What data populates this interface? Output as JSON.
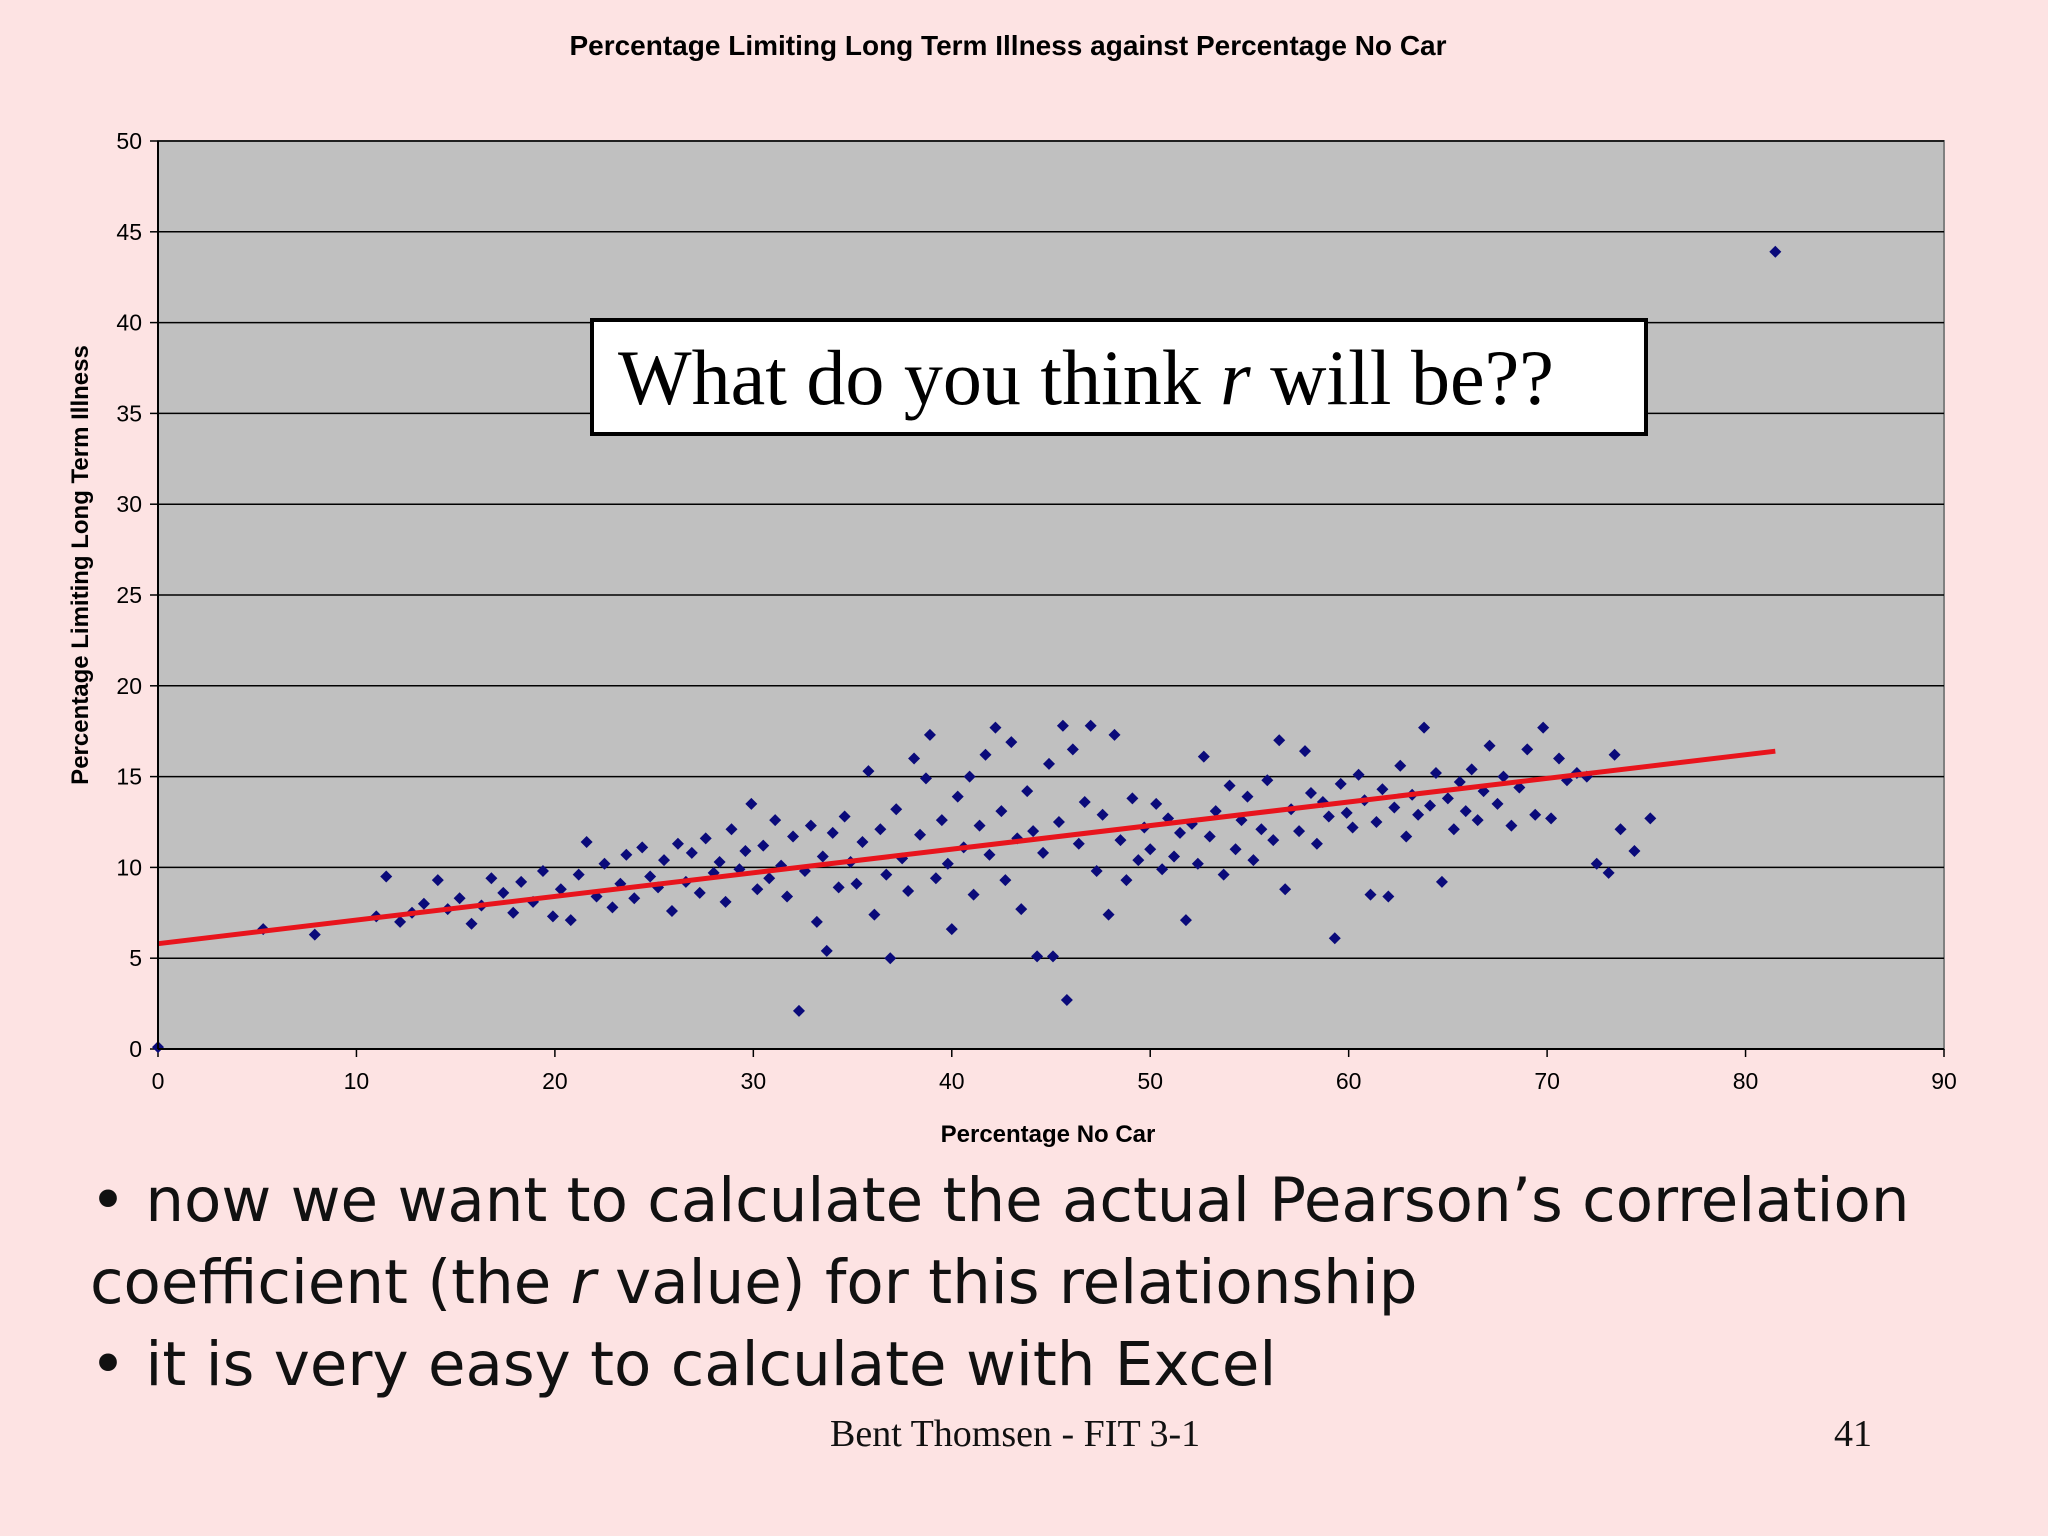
{
  "chart_data": {
    "type": "scatter",
    "title": "Percentage Limiting Long Term Illness against Percentage No Car",
    "xlabel": "Percentage No Car",
    "ylabel": "Percentage Limiting Long Term Illness",
    "xlim": [
      0,
      90
    ],
    "ylim": [
      0,
      50
    ],
    "xticks": [
      0,
      10,
      20,
      30,
      40,
      50,
      60,
      70,
      80,
      90
    ],
    "yticks": [
      0,
      5,
      10,
      15,
      20,
      25,
      30,
      35,
      40,
      45,
      50
    ],
    "grid": "horizontal",
    "legend": "none",
    "trendline": {
      "x": [
        0,
        81.5
      ],
      "y": [
        5.8,
        16.4
      ]
    },
    "colors": {
      "points": "#0a0a7a",
      "trendline": "#e8141c",
      "plot_bg": "#c0c0c0"
    },
    "points": [
      [
        0,
        0.1
      ],
      [
        5.3,
        6.6
      ],
      [
        7.9,
        6.3
      ],
      [
        11.0,
        7.3
      ],
      [
        11.5,
        9.5
      ],
      [
        12.2,
        7.0
      ],
      [
        12.8,
        7.5
      ],
      [
        13.4,
        8.0
      ],
      [
        14.1,
        9.3
      ],
      [
        14.6,
        7.7
      ],
      [
        15.2,
        8.3
      ],
      [
        15.8,
        6.9
      ],
      [
        16.3,
        7.9
      ],
      [
        16.8,
        9.4
      ],
      [
        17.4,
        8.6
      ],
      [
        17.9,
        7.5
      ],
      [
        18.3,
        9.2
      ],
      [
        18.9,
        8.1
      ],
      [
        19.4,
        9.8
      ],
      [
        19.9,
        7.3
      ],
      [
        20.3,
        8.8
      ],
      [
        20.8,
        7.1
      ],
      [
        21.2,
        9.6
      ],
      [
        21.6,
        11.4
      ],
      [
        22.1,
        8.4
      ],
      [
        22.5,
        10.2
      ],
      [
        22.9,
        7.8
      ],
      [
        23.3,
        9.1
      ],
      [
        23.6,
        10.7
      ],
      [
        24.0,
        8.3
      ],
      [
        24.4,
        11.1
      ],
      [
        24.8,
        9.5
      ],
      [
        25.2,
        8.9
      ],
      [
        25.5,
        10.4
      ],
      [
        25.9,
        7.6
      ],
      [
        26.2,
        11.3
      ],
      [
        26.6,
        9.2
      ],
      [
        26.9,
        10.8
      ],
      [
        27.3,
        8.6
      ],
      [
        27.6,
        11.6
      ],
      [
        28.0,
        9.7
      ],
      [
        28.3,
        10.3
      ],
      [
        28.6,
        8.1
      ],
      [
        28.9,
        12.1
      ],
      [
        29.3,
        9.9
      ],
      [
        29.6,
        10.9
      ],
      [
        29.9,
        13.5
      ],
      [
        30.2,
        8.8
      ],
      [
        30.5,
        11.2
      ],
      [
        30.8,
        9.4
      ],
      [
        31.1,
        12.6
      ],
      [
        31.4,
        10.1
      ],
      [
        31.7,
        8.4
      ],
      [
        32.0,
        11.7
      ],
      [
        32.3,
        2.1
      ],
      [
        32.6,
        9.8
      ],
      [
        32.9,
        12.3
      ],
      [
        33.2,
        7.0
      ],
      [
        33.5,
        10.6
      ],
      [
        33.7,
        5.4
      ],
      [
        34.0,
        11.9
      ],
      [
        34.3,
        8.9
      ],
      [
        34.6,
        12.8
      ],
      [
        34.9,
        10.3
      ],
      [
        35.2,
        9.1
      ],
      [
        35.5,
        11.4
      ],
      [
        35.8,
        15.3
      ],
      [
        36.1,
        7.4
      ],
      [
        36.4,
        12.1
      ],
      [
        36.7,
        9.6
      ],
      [
        36.9,
        5.0
      ],
      [
        37.2,
        13.2
      ],
      [
        37.5,
        10.5
      ],
      [
        37.8,
        8.7
      ],
      [
        38.1,
        16.0
      ],
      [
        38.4,
        11.8
      ],
      [
        38.7,
        14.9
      ],
      [
        38.9,
        17.3
      ],
      [
        39.2,
        9.4
      ],
      [
        39.5,
        12.6
      ],
      [
        39.8,
        10.2
      ],
      [
        40.0,
        6.6
      ],
      [
        40.3,
        13.9
      ],
      [
        40.6,
        11.1
      ],
      [
        40.9,
        15.0
      ],
      [
        41.1,
        8.5
      ],
      [
        41.4,
        12.3
      ],
      [
        41.7,
        16.2
      ],
      [
        41.9,
        10.7
      ],
      [
        42.2,
        17.7
      ],
      [
        42.5,
        13.1
      ],
      [
        42.7,
        9.3
      ],
      [
        43.0,
        16.9
      ],
      [
        43.3,
        11.6
      ],
      [
        43.5,
        7.7
      ],
      [
        43.8,
        14.2
      ],
      [
        44.1,
        12.0
      ],
      [
        44.3,
        5.1
      ],
      [
        44.6,
        10.8
      ],
      [
        44.9,
        15.7
      ],
      [
        45.1,
        5.1
      ],
      [
        45.4,
        12.5
      ],
      [
        45.6,
        17.8
      ],
      [
        45.8,
        2.7
      ],
      [
        46.1,
        16.5
      ],
      [
        46.4,
        11.3
      ],
      [
        46.7,
        13.6
      ],
      [
        47.0,
        17.8
      ],
      [
        47.3,
        9.8
      ],
      [
        47.6,
        12.9
      ],
      [
        47.9,
        7.4
      ],
      [
        48.2,
        17.3
      ],
      [
        48.5,
        11.5
      ],
      [
        48.8,
        9.3
      ],
      [
        49.1,
        13.8
      ],
      [
        49.4,
        10.4
      ],
      [
        49.7,
        12.2
      ],
      [
        50.0,
        11.0
      ],
      [
        50.3,
        13.5
      ],
      [
        50.6,
        9.9
      ],
      [
        50.9,
        12.7
      ],
      [
        51.2,
        10.6
      ],
      [
        51.5,
        11.9
      ],
      [
        51.8,
        7.1
      ],
      [
        52.1,
        12.4
      ],
      [
        52.4,
        10.2
      ],
      [
        52.7,
        16.1
      ],
      [
        53.0,
        11.7
      ],
      [
        53.3,
        13.1
      ],
      [
        53.7,
        9.6
      ],
      [
        54.0,
        14.5
      ],
      [
        54.3,
        11.0
      ],
      [
        54.6,
        12.6
      ],
      [
        54.9,
        13.9
      ],
      [
        55.2,
        10.4
      ],
      [
        55.6,
        12.1
      ],
      [
        55.9,
        14.8
      ],
      [
        56.2,
        11.5
      ],
      [
        56.5,
        17.0
      ],
      [
        56.8,
        8.8
      ],
      [
        57.1,
        13.2
      ],
      [
        57.5,
        12.0
      ],
      [
        57.8,
        16.4
      ],
      [
        58.1,
        14.1
      ],
      [
        58.4,
        11.3
      ],
      [
        58.7,
        13.6
      ],
      [
        59.0,
        12.8
      ],
      [
        59.3,
        6.1
      ],
      [
        59.6,
        14.6
      ],
      [
        59.9,
        13.0
      ],
      [
        60.2,
        12.2
      ],
      [
        60.5,
        15.1
      ],
      [
        60.8,
        13.7
      ],
      [
        61.1,
        8.5
      ],
      [
        61.4,
        12.5
      ],
      [
        61.7,
        14.3
      ],
      [
        62.0,
        8.4
      ],
      [
        62.3,
        13.3
      ],
      [
        62.6,
        15.6
      ],
      [
        62.9,
        11.7
      ],
      [
        63.2,
        14.0
      ],
      [
        63.5,
        12.9
      ],
      [
        63.8,
        17.7
      ],
      [
        64.1,
        13.4
      ],
      [
        64.4,
        15.2
      ],
      [
        64.7,
        9.2
      ],
      [
        65.0,
        13.8
      ],
      [
        65.3,
        12.1
      ],
      [
        65.6,
        14.7
      ],
      [
        65.9,
        13.1
      ],
      [
        66.2,
        15.4
      ],
      [
        66.5,
        12.6
      ],
      [
        66.8,
        14.2
      ],
      [
        67.1,
        16.7
      ],
      [
        67.5,
        13.5
      ],
      [
        67.8,
        15.0
      ],
      [
        68.2,
        12.3
      ],
      [
        68.6,
        14.4
      ],
      [
        69.0,
        16.5
      ],
      [
        69.4,
        12.9
      ],
      [
        69.8,
        17.7
      ],
      [
        70.2,
        12.7
      ],
      [
        70.6,
        16.0
      ],
      [
        71.0,
        14.8
      ],
      [
        71.5,
        15.2
      ],
      [
        72.0,
        15.0
      ],
      [
        72.5,
        10.2
      ],
      [
        73.1,
        9.7
      ],
      [
        73.4,
        16.2
      ],
      [
        73.7,
        12.1
      ],
      [
        74.4,
        10.9
      ],
      [
        75.2,
        12.7
      ],
      [
        81.5,
        43.9
      ]
    ],
    "annotation": {
      "prefix": "What do you think ",
      "var": "r",
      "suffix": " will be??"
    }
  },
  "text": {
    "bullet1": "• now we want to calculate the actual Pearson’s correlation",
    "bullet1b_prefix": "coefficient (the ",
    "bullet1b_var": "r",
    "bullet1b_suffix": " value) for this relationship",
    "bullet2": "• it is very easy to calculate with Excel",
    "footer_author": "Bent Thomsen - FIT 3-1",
    "page_number": "41"
  }
}
